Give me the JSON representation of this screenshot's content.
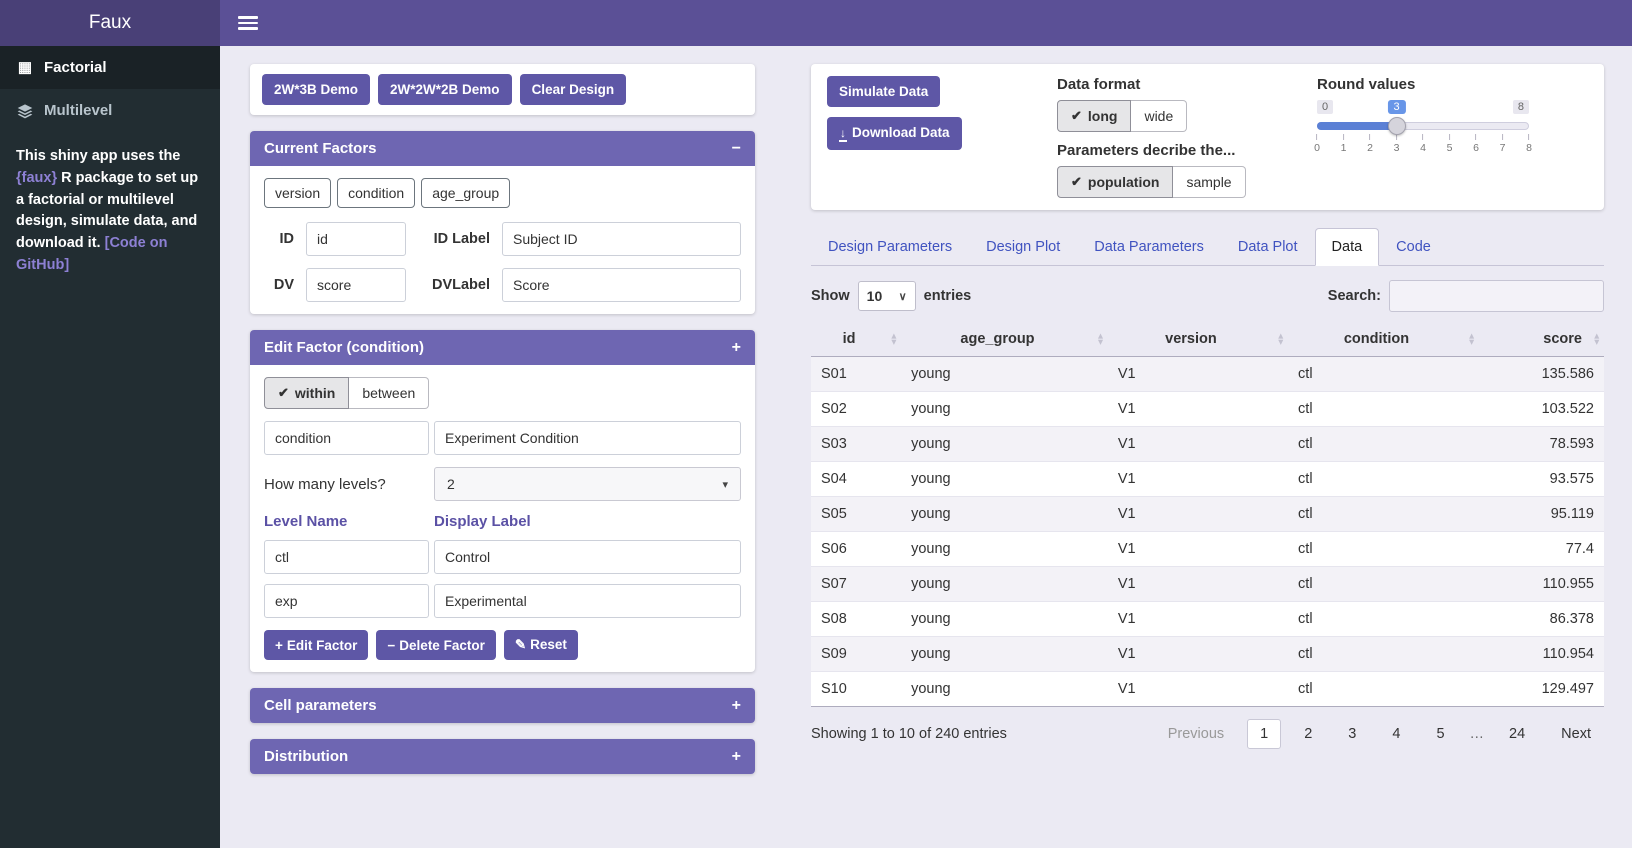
{
  "app": {
    "brand": "Faux"
  },
  "icons": {
    "collapse": "−",
    "expand": "+",
    "check": "✔",
    "caret": "▾",
    "caret_small": "∨",
    "download": "↓",
    "grid": "▦",
    "plus": "+",
    "minus": "−",
    "brush": "✎",
    "sort_up": "▴",
    "sort_down": "▾"
  },
  "colors": {
    "brand_dark": "#494077",
    "navbar": "#5b5096",
    "button": "#5e57a6",
    "box_header": "#6e66b2",
    "sidebar_bg": "#222d32",
    "main_bg": "#ebeaf3",
    "tab_link": "#4053c0",
    "slider_fill": "#5b80d5",
    "slider_badge": "#6896e8"
  },
  "sidebar": {
    "items": [
      {
        "label": "Factorial"
      },
      {
        "label": "Multilevel"
      }
    ],
    "about": {
      "pre": "This shiny app uses the ",
      "faux": "{faux}",
      "mid": " R package to set up a factorial or multilevel design, simulate data, and download it. ",
      "link": "[Code on GitHub]"
    }
  },
  "left": {
    "demo_buttons": [
      "2W*3B Demo",
      "2W*2W*2B Demo",
      "Clear Design"
    ],
    "current_factors": {
      "title": "Current Factors",
      "factors": [
        "version",
        "condition",
        "age_group"
      ],
      "id_label": "ID",
      "id_value": "id",
      "idlabel_label": "ID Label",
      "idlabel_value": "Subject ID",
      "dv_label": "DV",
      "dv_value": "score",
      "dvlabel_label": "DVLabel",
      "dvlabel_value": "Score"
    },
    "edit_factor": {
      "title": "Edit Factor (condition)",
      "within": "within",
      "between": "between",
      "name_value": "condition",
      "label_value": "Experiment Condition",
      "levels_label": "How many levels?",
      "levels_value": "2",
      "level_name_header": "Level Name",
      "display_label_header": "Display Label",
      "levels": [
        {
          "name": "ctl",
          "label": "Control"
        },
        {
          "name": "exp",
          "label": "Experimental"
        }
      ],
      "buttons": {
        "edit": "Edit Factor",
        "delete": "Delete Factor",
        "reset": "Reset"
      }
    },
    "cell_parameters_title": "Cell parameters",
    "distribution_title": "Distribution"
  },
  "controls": {
    "simulate": "Simulate Data",
    "download": "Download Data",
    "data_format_label": "Data format",
    "format_options": [
      "long",
      "wide"
    ],
    "params_label": "Parameters decribe the...",
    "param_options": [
      "population",
      "sample"
    ],
    "round_label": "Round values",
    "slider": {
      "min": "0",
      "max": "8",
      "value": "3",
      "ticks": [
        "0",
        "1",
        "2",
        "3",
        "4",
        "5",
        "6",
        "7",
        "8"
      ]
    }
  },
  "tabs": [
    {
      "label": "Design Parameters"
    },
    {
      "label": "Design Plot"
    },
    {
      "label": "Data Parameters"
    },
    {
      "label": "Data Plot"
    },
    {
      "label": "Data",
      "active": true
    },
    {
      "label": "Code"
    }
  ],
  "table": {
    "show_label": "Show",
    "page_len": "10",
    "entries_label": "entries",
    "search_label": "Search:",
    "search_value": "",
    "columns": [
      "id",
      "age_group",
      "version",
      "condition",
      "score"
    ],
    "rows": [
      [
        "S01",
        "young",
        "V1",
        "ctl",
        "135.586"
      ],
      [
        "S02",
        "young",
        "V1",
        "ctl",
        "103.522"
      ],
      [
        "S03",
        "young",
        "V1",
        "ctl",
        "78.593"
      ],
      [
        "S04",
        "young",
        "V1",
        "ctl",
        "93.575"
      ],
      [
        "S05",
        "young",
        "V1",
        "ctl",
        "95.119"
      ],
      [
        "S06",
        "young",
        "V1",
        "ctl",
        "77.4"
      ],
      [
        "S07",
        "young",
        "V1",
        "ctl",
        "110.955"
      ],
      [
        "S08",
        "young",
        "V1",
        "ctl",
        "86.378"
      ],
      [
        "S09",
        "young",
        "V1",
        "ctl",
        "110.954"
      ],
      [
        "S10",
        "young",
        "V1",
        "ctl",
        "129.497"
      ]
    ],
    "info": "Showing 1 to 10 of 240 entries",
    "pagination": {
      "previous": "Previous",
      "pages": [
        "1",
        "2",
        "3",
        "4",
        "5",
        "…",
        "24"
      ],
      "active": "1",
      "next": "Next"
    }
  }
}
